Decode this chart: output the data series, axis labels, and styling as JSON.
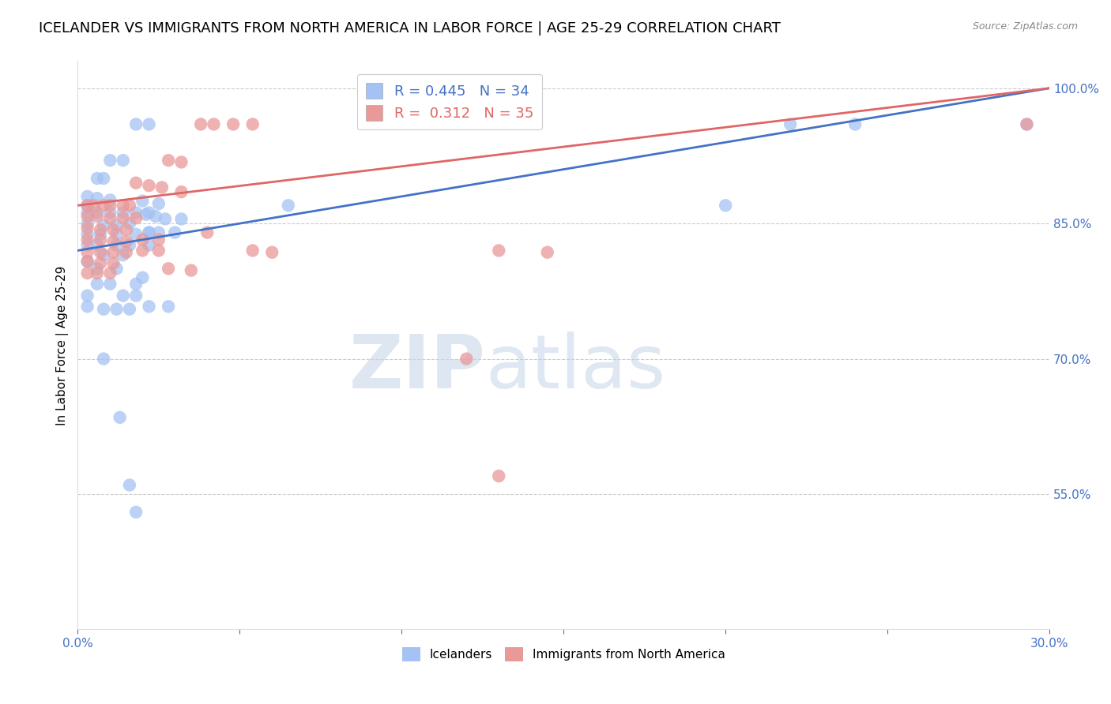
{
  "title": "ICELANDER VS IMMIGRANTS FROM NORTH AMERICA IN LABOR FORCE | AGE 25-29 CORRELATION CHART",
  "source": "Source: ZipAtlas.com",
  "ylabel": "In Labor Force | Age 25-29",
  "xlabel": "",
  "xmin": 0.0,
  "xmax": 0.3,
  "ymin": 0.4,
  "ymax": 1.03,
  "yticks": [
    0.55,
    0.7,
    0.85,
    1.0
  ],
  "ytick_labels": [
    "55.0%",
    "70.0%",
    "85.0%",
    "100.0%"
  ],
  "xticks": [
    0.0,
    0.05,
    0.1,
    0.15,
    0.2,
    0.25,
    0.3
  ],
  "xtick_labels": [
    "0.0%",
    "",
    "",
    "",
    "",
    "",
    "30.0%"
  ],
  "blue_scatter": [
    [
      0.003,
      0.87
    ],
    [
      0.01,
      0.92
    ],
    [
      0.014,
      0.92
    ],
    [
      0.018,
      0.96
    ],
    [
      0.022,
      0.96
    ],
    [
      0.006,
      0.9
    ],
    [
      0.008,
      0.9
    ],
    [
      0.003,
      0.88
    ],
    [
      0.006,
      0.878
    ],
    [
      0.01,
      0.876
    ],
    [
      0.003,
      0.862
    ],
    [
      0.006,
      0.862
    ],
    [
      0.01,
      0.862
    ],
    [
      0.014,
      0.862
    ],
    [
      0.018,
      0.862
    ],
    [
      0.022,
      0.862
    ],
    [
      0.003,
      0.85
    ],
    [
      0.008,
      0.848
    ],
    [
      0.012,
      0.848
    ],
    [
      0.016,
      0.85
    ],
    [
      0.003,
      0.838
    ],
    [
      0.007,
      0.838
    ],
    [
      0.012,
      0.838
    ],
    [
      0.018,
      0.838
    ],
    [
      0.022,
      0.84
    ],
    [
      0.003,
      0.826
    ],
    [
      0.006,
      0.826
    ],
    [
      0.012,
      0.826
    ],
    [
      0.016,
      0.826
    ],
    [
      0.022,
      0.826
    ],
    [
      0.008,
      0.815
    ],
    [
      0.014,
      0.815
    ],
    [
      0.003,
      0.808
    ],
    [
      0.006,
      0.8
    ],
    [
      0.012,
      0.8
    ],
    [
      0.02,
      0.79
    ],
    [
      0.006,
      0.783
    ],
    [
      0.01,
      0.783
    ],
    [
      0.018,
      0.783
    ],
    [
      0.003,
      0.77
    ],
    [
      0.014,
      0.77
    ],
    [
      0.018,
      0.77
    ],
    [
      0.003,
      0.758
    ],
    [
      0.008,
      0.755
    ],
    [
      0.012,
      0.755
    ],
    [
      0.016,
      0.755
    ],
    [
      0.022,
      0.758
    ],
    [
      0.028,
      0.758
    ],
    [
      0.02,
      0.875
    ],
    [
      0.025,
      0.872
    ],
    [
      0.021,
      0.86
    ],
    [
      0.024,
      0.858
    ],
    [
      0.027,
      0.855
    ],
    [
      0.032,
      0.855
    ],
    [
      0.022,
      0.84
    ],
    [
      0.025,
      0.84
    ],
    [
      0.03,
      0.84
    ],
    [
      0.008,
      0.7
    ],
    [
      0.013,
      0.635
    ],
    [
      0.016,
      0.56
    ],
    [
      0.018,
      0.53
    ],
    [
      0.065,
      0.87
    ],
    [
      0.2,
      0.87
    ],
    [
      0.22,
      0.96
    ],
    [
      0.24,
      0.96
    ],
    [
      0.293,
      0.96
    ]
  ],
  "pink_scatter": [
    [
      0.003,
      0.87
    ],
    [
      0.005,
      0.87
    ],
    [
      0.008,
      0.87
    ],
    [
      0.01,
      0.87
    ],
    [
      0.014,
      0.87
    ],
    [
      0.016,
      0.87
    ],
    [
      0.003,
      0.858
    ],
    [
      0.006,
      0.858
    ],
    [
      0.01,
      0.856
    ],
    [
      0.014,
      0.856
    ],
    [
      0.018,
      0.856
    ],
    [
      0.003,
      0.845
    ],
    [
      0.007,
      0.843
    ],
    [
      0.011,
      0.843
    ],
    [
      0.015,
      0.843
    ],
    [
      0.003,
      0.832
    ],
    [
      0.007,
      0.832
    ],
    [
      0.011,
      0.83
    ],
    [
      0.015,
      0.83
    ],
    [
      0.02,
      0.832
    ],
    [
      0.025,
      0.832
    ],
    [
      0.003,
      0.818
    ],
    [
      0.007,
      0.818
    ],
    [
      0.011,
      0.818
    ],
    [
      0.015,
      0.818
    ],
    [
      0.02,
      0.82
    ],
    [
      0.025,
      0.82
    ],
    [
      0.003,
      0.808
    ],
    [
      0.007,
      0.806
    ],
    [
      0.011,
      0.806
    ],
    [
      0.003,
      0.795
    ],
    [
      0.006,
      0.795
    ],
    [
      0.01,
      0.795
    ],
    [
      0.018,
      0.895
    ],
    [
      0.022,
      0.892
    ],
    [
      0.026,
      0.89
    ],
    [
      0.032,
      0.885
    ],
    [
      0.038,
      0.96
    ],
    [
      0.042,
      0.96
    ],
    [
      0.048,
      0.96
    ],
    [
      0.054,
      0.96
    ],
    [
      0.028,
      0.92
    ],
    [
      0.032,
      0.918
    ],
    [
      0.04,
      0.84
    ],
    [
      0.028,
      0.8
    ],
    [
      0.035,
      0.798
    ],
    [
      0.054,
      0.82
    ],
    [
      0.06,
      0.818
    ],
    [
      0.13,
      0.82
    ],
    [
      0.145,
      0.818
    ],
    [
      0.12,
      0.7
    ],
    [
      0.13,
      0.57
    ],
    [
      0.293,
      0.96
    ]
  ],
  "blue_R": 0.445,
  "blue_N": 34,
  "pink_R": 0.312,
  "pink_N": 35,
  "blue_color": "#a4c2f4",
  "pink_color": "#ea9999",
  "blue_line_color": "#4472c4",
  "pink_line_color": "#e06666",
  "legend_blue_label": "Icelanders",
  "legend_pink_label": "Immigrants from North America",
  "watermark_zip": "ZIP",
  "watermark_atlas": "atlas",
  "axis_label_color": "#4472c4",
  "title_fontsize": 13,
  "axis_fontsize": 11,
  "tick_fontsize": 11,
  "blue_trend_x": [
    0.0,
    0.3
  ],
  "blue_trend_y": [
    0.82,
    1.0
  ],
  "pink_trend_x": [
    0.0,
    0.3
  ],
  "pink_trend_y": [
    0.87,
    1.0
  ]
}
